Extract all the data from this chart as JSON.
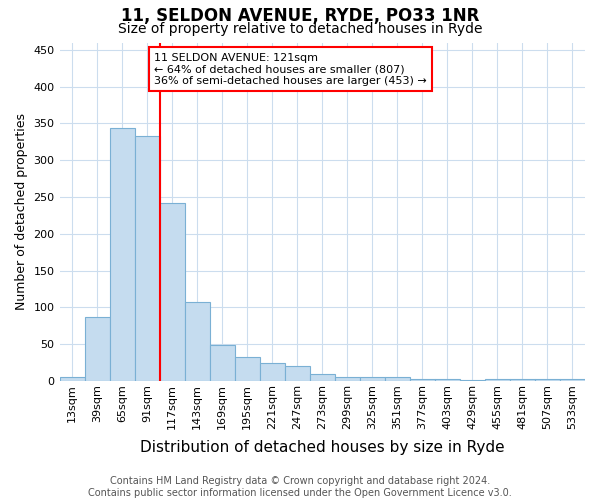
{
  "title1": "11, SELDON AVENUE, RYDE, PO33 1NR",
  "title2": "Size of property relative to detached houses in Ryde",
  "xlabel": "Distribution of detached houses by size in Ryde",
  "ylabel": "Number of detached properties",
  "categories": [
    "13sqm",
    "39sqm",
    "65sqm",
    "91sqm",
    "117sqm",
    "143sqm",
    "169sqm",
    "195sqm",
    "221sqm",
    "247sqm",
    "273sqm",
    "299sqm",
    "325sqm",
    "351sqm",
    "377sqm",
    "403sqm",
    "429sqm",
    "455sqm",
    "481sqm",
    "507sqm",
    "533sqm"
  ],
  "values": [
    6,
    87,
    344,
    333,
    242,
    108,
    49,
    32,
    25,
    21,
    10,
    5,
    5,
    5,
    3,
    3,
    2,
    3,
    3,
    3,
    3
  ],
  "bar_color": "#c5dcef",
  "bar_edge_color": "#7ab0d4",
  "red_line_index": 4,
  "annotation_text1": "11 SELDON AVENUE: 121sqm",
  "annotation_text2": "← 64% of detached houses are smaller (807)",
  "annotation_text3": "36% of semi-detached houses are larger (453) →",
  "annotation_box_color": "white",
  "annotation_box_edge": "red",
  "red_line_color": "red",
  "ylim": [
    0,
    460
  ],
  "yticks": [
    0,
    50,
    100,
    150,
    200,
    250,
    300,
    350,
    400,
    450
  ],
  "footnote1": "Contains HM Land Registry data © Crown copyright and database right 2024.",
  "footnote2": "Contains public sector information licensed under the Open Government Licence v3.0.",
  "bg_color": "#ffffff",
  "plot_bg_color": "#ffffff",
  "grid_color": "#ccddee",
  "title1_fontsize": 12,
  "title2_fontsize": 10,
  "xlabel_fontsize": 11,
  "ylabel_fontsize": 9,
  "tick_fontsize": 8,
  "footnote_fontsize": 7,
  "annotation_fontsize": 8
}
